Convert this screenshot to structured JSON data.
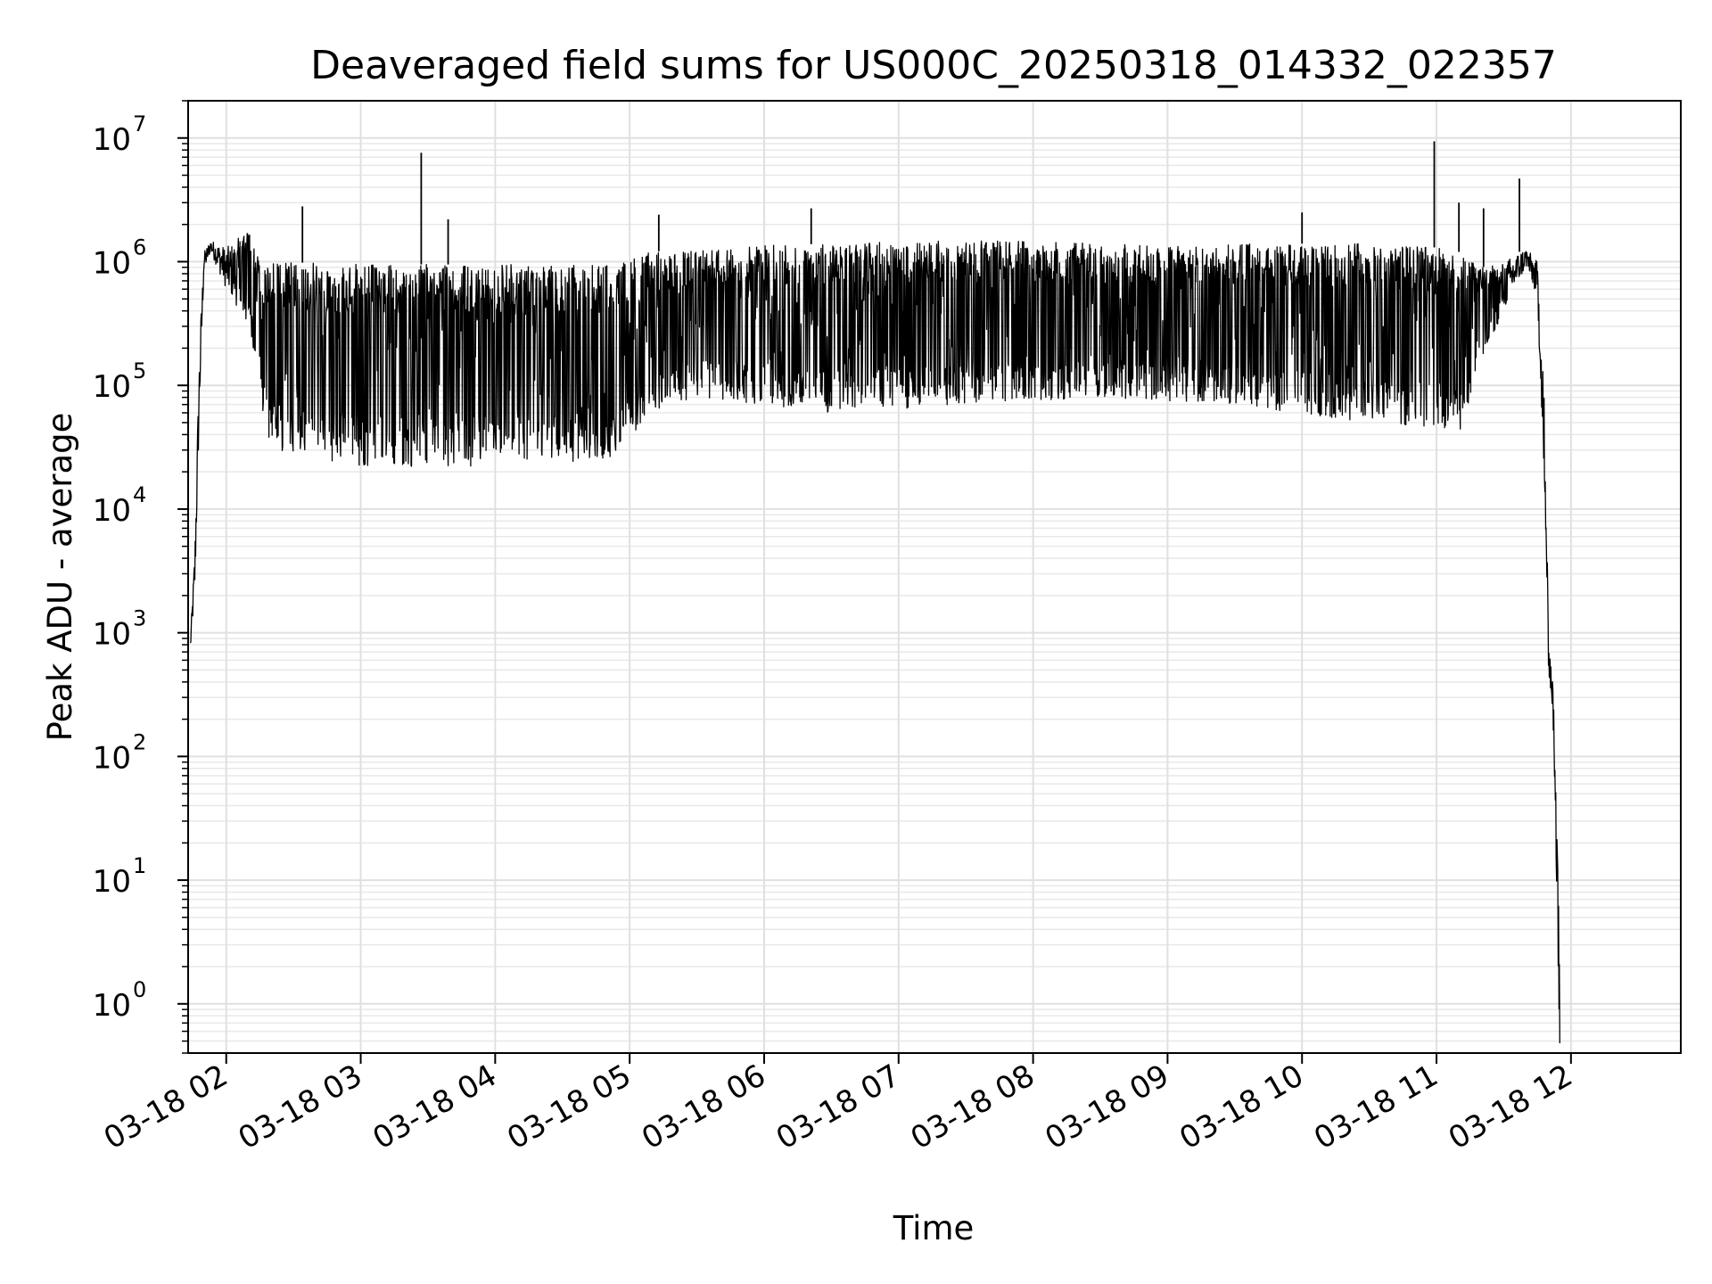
{
  "chart_data": {
    "type": "line",
    "title": "Deaveraged field sums for US000C_20250318_014332_022357",
    "xlabel": "Time",
    "ylabel": "Peak ADU - average",
    "yscale": "log",
    "ylim": [
      0.4,
      20000000
    ],
    "xlim": [
      "2025-03-18 01:43",
      "2025-03-18 12:49"
    ],
    "grid": true,
    "y_ticks": [
      {
        "base": "10",
        "exp": "0",
        "value": 1
      },
      {
        "base": "10",
        "exp": "1",
        "value": 10
      },
      {
        "base": "10",
        "exp": "2",
        "value": 100
      },
      {
        "base": "10",
        "exp": "3",
        "value": 1000
      },
      {
        "base": "10",
        "exp": "4",
        "value": 10000
      },
      {
        "base": "10",
        "exp": "5",
        "value": 100000
      },
      {
        "base": "10",
        "exp": "6",
        "value": 1000000
      },
      {
        "base": "10",
        "exp": "7",
        "value": 10000000
      }
    ],
    "x_ticks": [
      {
        "label": "03-18 02",
        "time": "2025-03-18 02:00"
      },
      {
        "label": "03-18 03",
        "time": "2025-03-18 03:00"
      },
      {
        "label": "03-18 04",
        "time": "2025-03-18 04:00"
      },
      {
        "label": "03-18 05",
        "time": "2025-03-18 05:00"
      },
      {
        "label": "03-18 06",
        "time": "2025-03-18 06:00"
      },
      {
        "label": "03-18 07",
        "time": "2025-03-18 07:00"
      },
      {
        "label": "03-18 08",
        "time": "2025-03-18 08:00"
      },
      {
        "label": "03-18 09",
        "time": "2025-03-18 09:00"
      },
      {
        "label": "03-18 10",
        "time": "2025-03-18 10:00"
      },
      {
        "label": "03-18 11",
        "time": "2025-03-18 11:00"
      },
      {
        "label": "03-18 12",
        "time": "2025-03-18 12:00"
      }
    ],
    "series": [
      {
        "line_color": "#000000",
        "envelope": [
          {
            "time": "2025-03-18 01:44",
            "low": 700,
            "high": 900
          },
          {
            "time": "2025-03-18 01:46",
            "low": 2000,
            "high": 5000
          },
          {
            "time": "2025-03-18 01:48",
            "low": 50000,
            "high": 200000
          },
          {
            "time": "2025-03-18 01:50",
            "low": 800000,
            "high": 1200000
          },
          {
            "time": "2025-03-18 01:53",
            "low": 1200000,
            "high": 1500000
          },
          {
            "time": "2025-03-18 02:00",
            "low": 600000,
            "high": 1300000
          },
          {
            "time": "2025-03-18 02:10",
            "low": 300000,
            "high": 1800000
          },
          {
            "time": "2025-03-18 02:15",
            "low": 80000,
            "high": 1000000
          },
          {
            "time": "2025-03-18 02:20",
            "low": 30000,
            "high": 1000000
          },
          {
            "time": "2025-03-18 03:00",
            "low": 22000,
            "high": 950000
          },
          {
            "time": "2025-03-18 04:00",
            "low": 22000,
            "high": 950000
          },
          {
            "time": "2025-03-18 04:50",
            "low": 25000,
            "high": 950000
          },
          {
            "time": "2025-03-18 05:10",
            "low": 60000,
            "high": 1200000
          },
          {
            "time": "2025-03-18 05:30",
            "low": 80000,
            "high": 1300000
          },
          {
            "time": "2025-03-18 06:30",
            "low": 60000,
            "high": 1400000
          },
          {
            "time": "2025-03-18 07:30",
            "low": 70000,
            "high": 1500000
          },
          {
            "time": "2025-03-18 08:30",
            "low": 80000,
            "high": 1400000
          },
          {
            "time": "2025-03-18 09:30",
            "low": 70000,
            "high": 1400000
          },
          {
            "time": "2025-03-18 10:30",
            "low": 50000,
            "high": 1400000
          },
          {
            "time": "2025-03-18 11:00",
            "low": 45000,
            "high": 1300000
          },
          {
            "time": "2025-03-18 11:10",
            "low": 40000,
            "high": 1200000
          },
          {
            "time": "2025-03-18 11:20",
            "low": 150000,
            "high": 900000
          },
          {
            "time": "2025-03-18 11:30",
            "low": 400000,
            "high": 1000000
          },
          {
            "time": "2025-03-18 11:40",
            "low": 900000,
            "high": 1300000
          },
          {
            "time": "2025-03-18 11:45",
            "low": 500000,
            "high": 1000000
          },
          {
            "time": "2025-03-18 11:48",
            "low": 20000,
            "high": 100000
          },
          {
            "time": "2025-03-18 11:50",
            "low": 500,
            "high": 1000
          },
          {
            "time": "2025-03-18 11:52",
            "low": 200,
            "high": 400
          },
          {
            "time": "2025-03-18 11:55",
            "low": 0.4,
            "high": 3
          }
        ],
        "spikes": [
          {
            "time": "2025-03-18 02:34",
            "value": 2800000
          },
          {
            "time": "2025-03-18 03:27",
            "value": 7600000
          },
          {
            "time": "2025-03-18 03:39",
            "value": 2200000
          },
          {
            "time": "2025-03-18 05:13",
            "value": 2400000
          },
          {
            "time": "2025-03-18 06:21",
            "value": 2700000
          },
          {
            "time": "2025-03-18 10:00",
            "value": 2500000
          },
          {
            "time": "2025-03-18 10:59",
            "value": 9400000
          },
          {
            "time": "2025-03-18 11:10",
            "value": 3000000
          },
          {
            "time": "2025-03-18 11:21",
            "value": 2700000
          },
          {
            "time": "2025-03-18 11:37",
            "value": 4700000
          }
        ]
      }
    ]
  }
}
